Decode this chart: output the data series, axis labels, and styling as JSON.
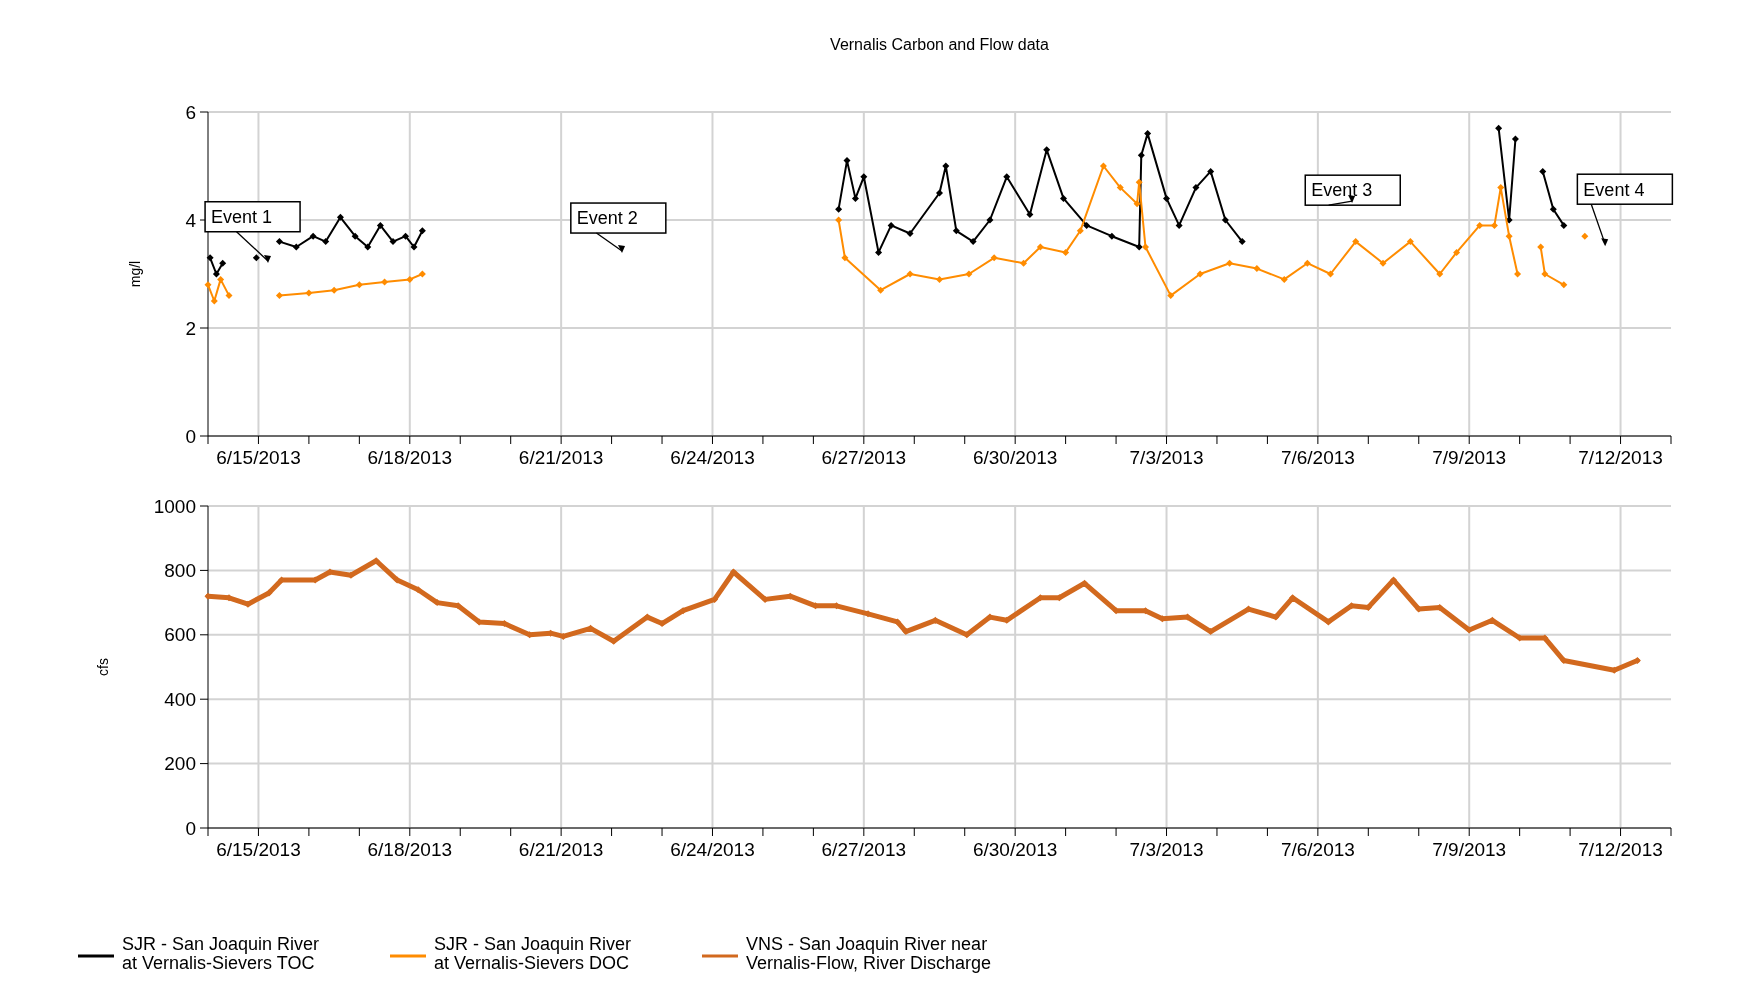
{
  "chart_data": [
    {
      "type": "line",
      "title": "Vernalis Carbon and Flow data",
      "ylabel": "mg/l",
      "xlim": [
        "2013-06-14",
        "2013-07-13"
      ],
      "xticks": [
        {
          "value": "2013-06-14",
          "label": null
        },
        {
          "value": "2013-06-15",
          "label": "6/15/2013"
        },
        {
          "value": "2013-06-16",
          "label": null
        },
        {
          "value": "2013-06-17",
          "label": null
        },
        {
          "value": "2013-06-18",
          "label": "6/18/2013"
        },
        {
          "value": "2013-06-19",
          "label": null
        },
        {
          "value": "2013-06-20",
          "label": null
        },
        {
          "value": "2013-06-21",
          "label": "6/21/2013"
        },
        {
          "value": "2013-06-22",
          "label": null
        },
        {
          "value": "2013-06-23",
          "label": null
        },
        {
          "value": "2013-06-24",
          "label": "6/24/2013"
        },
        {
          "value": "2013-06-25",
          "label": null
        },
        {
          "value": "2013-06-26",
          "label": null
        },
        {
          "value": "2013-06-27",
          "label": "6/27/2013"
        },
        {
          "value": "2013-06-28",
          "label": null
        },
        {
          "value": "2013-06-29",
          "label": null
        },
        {
          "value": "2013-06-30",
          "label": "6/30/2013"
        },
        {
          "value": "2013-07-01",
          "label": null
        },
        {
          "value": "2013-07-02",
          "label": null
        },
        {
          "value": "2013-07-03",
          "label": "7/3/2013"
        },
        {
          "value": "2013-07-04",
          "label": null
        },
        {
          "value": "2013-07-05",
          "label": null
        },
        {
          "value": "2013-07-06",
          "label": "7/6/2013"
        },
        {
          "value": "2013-07-07",
          "label": null
        },
        {
          "value": "2013-07-08",
          "label": null
        },
        {
          "value": "2013-07-09",
          "label": "7/9/2013"
        },
        {
          "value": "2013-07-10",
          "label": null
        },
        {
          "value": "2013-07-11",
          "label": null
        },
        {
          "value": "2013-07-12",
          "label": "7/12/2013"
        },
        {
          "value": "2013-07-13",
          "label": null
        }
      ],
      "ylim": [
        0,
        6
      ],
      "yticks": [
        0,
        2,
        4,
        6
      ],
      "grid": true,
      "legend": "bottom",
      "marker": "diamond",
      "line_style": "solid",
      "annotations": [
        "Event 1",
        "Event 2",
        "Event 3",
        "Event 4"
      ],
      "series": [
        {
          "name": "SJR - San Joaquin River at Vernalis-Sievers TOC",
          "color": "#000000",
          "x": [
            "2013-06-14T01:00",
            "2013-06-14T04:00",
            "2013-06-14T07:00",
            "2013-06-14T12:00",
            "2013-06-14T23:00",
            "2013-06-15T05:00",
            "2013-06-15T10:00",
            "2013-06-15T18:00",
            "2013-06-16T02:00",
            "2013-06-16T08:00",
            "2013-06-16T15:00",
            "2013-06-16T22:00",
            "2013-06-17T04:00",
            "2013-06-17T10:00",
            "2013-06-17T16:00",
            "2013-06-17T22:00",
            "2013-06-18T02:00",
            "2013-06-18T06:00",
            "2013-06-22T00:00",
            "2013-06-26T12:00",
            "2013-06-26T16:00",
            "2013-06-26T20:00",
            "2013-06-27T00:00",
            "2013-06-27T07:00",
            "2013-06-27T13:00",
            "2013-06-27T22:00",
            "2013-06-28T12:00",
            "2013-06-28T15:00",
            "2013-06-28T20:00",
            "2013-06-29T04:00",
            "2013-06-29T12:00",
            "2013-06-29T20:00",
            "2013-06-30T07:00",
            "2013-06-30T15:00",
            "2013-06-30T23:00",
            "2013-07-01T10:00",
            "2013-07-01T22:00",
            "2013-07-02T11:00",
            "2013-07-02T12:00",
            "2013-07-02T15:00",
            "2013-07-03T00:00",
            "2013-07-03T06:00",
            "2013-07-03T14:00",
            "2013-07-03T21:00",
            "2013-07-04T04:00",
            "2013-07-04T12:00",
            "2013-07-07T00:00",
            "2013-07-09T14:00",
            "2013-07-09T19:00",
            "2013-07-09T22:00",
            "2013-07-10T05:00",
            "2013-07-10T11:00",
            "2013-07-10T16:00",
            "2013-07-10T21:00"
          ],
          "values": [
            3.3,
            3.0,
            3.2,
            null,
            3.3,
            null,
            3.6,
            3.5,
            3.7,
            3.6,
            4.05,
            3.7,
            3.5,
            3.9,
            3.6,
            3.7,
            3.5,
            3.8,
            null,
            4.2,
            5.1,
            4.4,
            4.8,
            3.4,
            3.9,
            3.75,
            4.5,
            5.0,
            3.8,
            3.6,
            4.0,
            4.8,
            4.1,
            5.3,
            4.4,
            3.9,
            3.7,
            3.5,
            5.2,
            5.6,
            4.4,
            3.9,
            4.6,
            4.9,
            4.0,
            3.6,
            null,
            5.7,
            4.0,
            5.5,
            null,
            4.9,
            4.2,
            3.9
          ]
        },
        {
          "name": "SJR - San Joaquin River at Vernalis-Sievers DOC",
          "color": "#ff8c00",
          "x": [
            "2013-06-14T00:00",
            "2013-06-14T03:00",
            "2013-06-14T06:00",
            "2013-06-14T10:00",
            "2013-06-15T00:00",
            "2013-06-15T10:00",
            "2013-06-16T00:00",
            "2013-06-16T12:00",
            "2013-06-17T00:00",
            "2013-06-17T12:00",
            "2013-06-18T00:00",
            "2013-06-18T06:00",
            "2013-06-22T00:00",
            "2013-06-26T12:00",
            "2013-06-26T15:00",
            "2013-06-27T08:00",
            "2013-06-27T22:00",
            "2013-06-28T12:00",
            "2013-06-29T02:00",
            "2013-06-29T14:00",
            "2013-06-30T04:00",
            "2013-06-30T12:00",
            "2013-07-01T00:00",
            "2013-07-01T07:00",
            "2013-07-01T18:00",
            "2013-07-02T02:00",
            "2013-07-02T10:00",
            "2013-07-02T11:00",
            "2013-07-02T14:00",
            "2013-07-03T02:00",
            "2013-07-03T16:00",
            "2013-07-04T06:00",
            "2013-07-04T19:00",
            "2013-07-05T08:00",
            "2013-07-05T19:00",
            "2013-07-06T06:00",
            "2013-07-06T18:00",
            "2013-07-07T07:00",
            "2013-07-07T20:00",
            "2013-07-08T10:00",
            "2013-07-08T18:00",
            "2013-07-09T05:00",
            "2013-07-09T12:00",
            "2013-07-09T15:00",
            "2013-07-09T19:00",
            "2013-07-09T23:00",
            "2013-07-10T05:00",
            "2013-07-10T10:00",
            "2013-07-10T12:00",
            "2013-07-10T21:00",
            "2013-07-11T00:00",
            "2013-07-11T07:00"
          ],
          "values": [
            2.8,
            2.5,
            2.9,
            2.6,
            null,
            2.6,
            2.65,
            2.7,
            2.8,
            2.85,
            2.9,
            3.0,
            null,
            4.0,
            3.3,
            2.7,
            3.0,
            2.9,
            3.0,
            3.3,
            3.2,
            3.5,
            3.4,
            3.8,
            5.0,
            4.6,
            4.3,
            4.7,
            3.5,
            2.6,
            3.0,
            3.2,
            3.1,
            2.9,
            3.2,
            3.0,
            3.6,
            3.2,
            3.6,
            3.0,
            3.4,
            3.9,
            3.9,
            4.6,
            3.7,
            3.0,
            null,
            3.5,
            3.0,
            2.8,
            null,
            3.7
          ]
        }
      ]
    },
    {
      "type": "line",
      "ylabel": "cfs",
      "xlim": [
        "2013-06-14",
        "2013-07-13"
      ],
      "xticks": [
        {
          "value": "2013-06-14",
          "label": null
        },
        {
          "value": "2013-06-15",
          "label": "6/15/2013"
        },
        {
          "value": "2013-06-16",
          "label": null
        },
        {
          "value": "2013-06-17",
          "label": null
        },
        {
          "value": "2013-06-18",
          "label": "6/18/2013"
        },
        {
          "value": "2013-06-19",
          "label": null
        },
        {
          "value": "2013-06-20",
          "label": null
        },
        {
          "value": "2013-06-21",
          "label": "6/21/2013"
        },
        {
          "value": "2013-06-22",
          "label": null
        },
        {
          "value": "2013-06-23",
          "label": null
        },
        {
          "value": "2013-06-24",
          "label": "6/24/2013"
        },
        {
          "value": "2013-06-25",
          "label": null
        },
        {
          "value": "2013-06-26",
          "label": null
        },
        {
          "value": "2013-06-27",
          "label": "6/27/2013"
        },
        {
          "value": "2013-06-28",
          "label": null
        },
        {
          "value": "2013-06-29",
          "label": null
        },
        {
          "value": "2013-06-30",
          "label": "6/30/2013"
        },
        {
          "value": "2013-07-01",
          "label": null
        },
        {
          "value": "2013-07-02",
          "label": null
        },
        {
          "value": "2013-07-03",
          "label": "7/3/2013"
        },
        {
          "value": "2013-07-04",
          "label": null
        },
        {
          "value": "2013-07-05",
          "label": null
        },
        {
          "value": "2013-07-06",
          "label": "7/6/2013"
        },
        {
          "value": "2013-07-07",
          "label": null
        },
        {
          "value": "2013-07-08",
          "label": null
        },
        {
          "value": "2013-07-09",
          "label": "7/9/2013"
        },
        {
          "value": "2013-07-10",
          "label": null
        },
        {
          "value": "2013-07-11",
          "label": null
        },
        {
          "value": "2013-07-12",
          "label": "7/12/2013"
        },
        {
          "value": "2013-07-13",
          "label": null
        }
      ],
      "ylim": [
        0,
        1000
      ],
      "yticks": [
        0,
        200,
        400,
        600,
        800,
        1000
      ],
      "grid": true,
      "legend": "bottom",
      "marker": "diamond",
      "line_style": "solid",
      "series": [
        {
          "name": "VNS - San Joaquin River near Vernalis-Flow, River Discharge",
          "color": "#d2691e",
          "x": [
            "2013-06-14T00:00",
            "2013-06-14T10:00",
            "2013-06-14T19:00",
            "2013-06-15T05:00",
            "2013-06-15T11:00",
            "2013-06-16T03:00",
            "2013-06-16T10:00",
            "2013-06-16T20:00",
            "2013-06-17T08:00",
            "2013-06-17T18:00",
            "2013-06-18T04:00",
            "2013-06-18T13:00",
            "2013-06-18T23:00",
            "2013-06-19T09:00",
            "2013-06-19T21:00",
            "2013-06-20T09:00",
            "2013-06-20T19:00",
            "2013-06-21T01:00",
            "2013-06-21T14:00",
            "2013-06-22T01:00",
            "2013-06-22T17:00",
            "2013-06-23T00:00",
            "2013-06-23T10:00",
            "2013-06-24T01:00",
            "2013-06-24T10:00",
            "2013-06-25T01:00",
            "2013-06-25T13:00",
            "2013-06-26T01:00",
            "2013-06-26T11:00",
            "2013-06-27T02:00",
            "2013-06-27T16:00",
            "2013-06-27T20:00",
            "2013-06-28T10:00",
            "2013-06-29T01:00",
            "2013-06-29T12:00",
            "2013-06-29T20:00",
            "2013-06-30T12:00",
            "2013-06-30T21:00",
            "2013-07-01T09:00",
            "2013-07-02T00:00",
            "2013-07-02T14:00",
            "2013-07-02T22:00",
            "2013-07-03T10:00",
            "2013-07-03T21:00",
            "2013-07-04T15:00",
            "2013-07-05T04:00",
            "2013-07-05T12:00",
            "2013-07-06T05:00",
            "2013-07-06T16:00",
            "2013-07-07T00:00",
            "2013-07-07T12:00",
            "2013-07-08T00:00",
            "2013-07-08T10:00",
            "2013-07-09T00:00",
            "2013-07-09T11:00",
            "2013-07-10T00:00",
            "2013-07-10T12:00",
            "2013-07-10T21:00",
            "2013-07-11T21:00",
            "2013-07-12T08:00"
          ],
          "values": [
            720,
            715,
            695,
            730,
            770,
            770,
            795,
            785,
            830,
            770,
            740,
            700,
            690,
            640,
            635,
            600,
            605,
            595,
            620,
            580,
            655,
            635,
            675,
            710,
            795,
            710,
            720,
            690,
            690,
            665,
            640,
            610,
            645,
            600,
            655,
            645,
            715,
            715,
            760,
            675,
            675,
            650,
            655,
            610,
            680,
            655,
            715,
            640,
            690,
            685,
            770,
            680,
            685,
            615,
            645,
            590,
            590,
            520,
            490,
            520
          ]
        }
      ]
    }
  ]
}
